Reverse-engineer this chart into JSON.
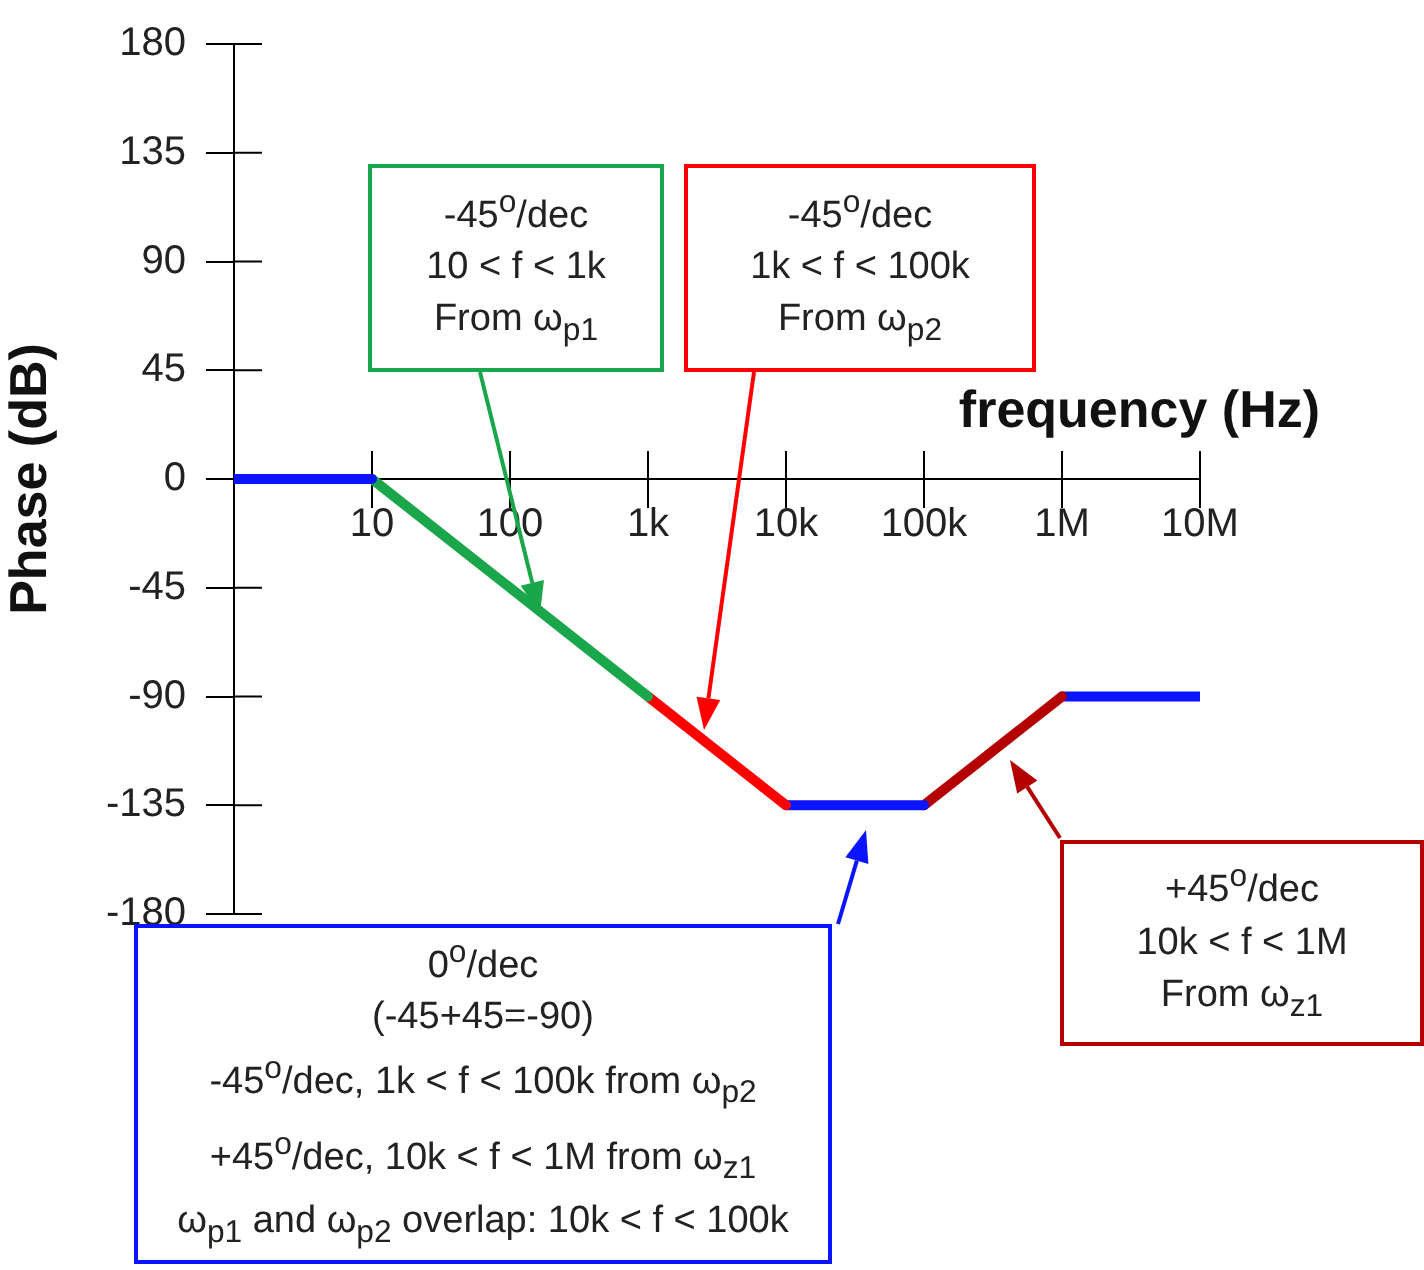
{
  "chart_data": {
    "type": "line",
    "ylabel": "Phase (dB)",
    "xlabel": "frequency (Hz)",
    "log": "x",
    "grid": false,
    "marker": "none",
    "line_style": "solid",
    "xlim": [
      1,
      10000000
    ],
    "ylim": [
      -180,
      180
    ],
    "xticks": [
      {
        "value": 10,
        "label": "10"
      },
      {
        "value": 100,
        "label": "100"
      },
      {
        "value": 1000,
        "label": "1k"
      },
      {
        "value": 10000,
        "label": "10k"
      },
      {
        "value": 100000,
        "label": "100k"
      },
      {
        "value": 1000000,
        "label": "1M"
      },
      {
        "value": 10000000,
        "label": "10M"
      }
    ],
    "yticks": [
      -180,
      -135,
      -90,
      -45,
      0,
      45,
      90,
      135,
      180
    ],
    "series": [
      {
        "color": "#0a14ff",
        "x": [
          1,
          10
        ],
        "values": [
          0,
          0
        ]
      },
      {
        "color": "#1aa64a",
        "x": [
          10,
          1000
        ],
        "values": [
          0,
          -90
        ]
      },
      {
        "color": "#ff0000",
        "x": [
          1000,
          10000
        ],
        "values": [
          -90,
          -135
        ]
      },
      {
        "color": "#0a14ff",
        "x": [
          10000,
          100000
        ],
        "values": [
          -135,
          -135
        ]
      },
      {
        "color": "#b40000",
        "x": [
          100000,
          1000000
        ],
        "values": [
          -135,
          -90
        ]
      },
      {
        "color": "#0a14ff",
        "x": [
          1000000,
          10000000
        ],
        "values": [
          -90,
          -90
        ]
      }
    ],
    "annotations": [
      "-45$^{o}$/dec\n10 < f < 1k\nFrom ω$_{p1}$",
      "-45$^{o}$/dec\n1k < f < 100k\nFrom ω$_{p2}$",
      "0$^{o}$/dec\n(-45+45=-90)\n-45$^{o}$/dec, 1k < f < 100k from ω$_{p2}$\n+45$^{o}$/dec, 10k < f < 1M from ω$_{z1}$\nω$_{p1}$ and ω$_{p2}$  overlap: 10k < f < 100k",
      "+45$^{o}$/dec\n10k < f < 1M\nFrom ω$_{z1}$"
    ]
  }
}
